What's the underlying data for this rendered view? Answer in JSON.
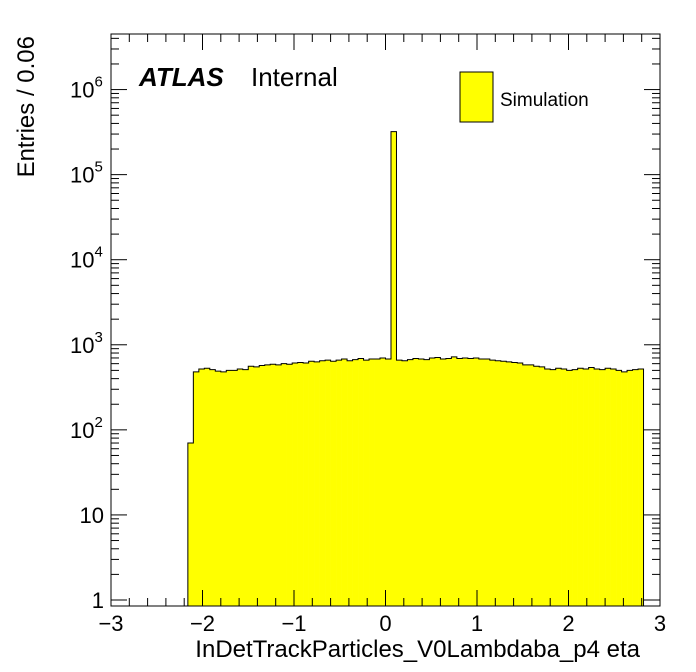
{
  "chart_data": {
    "type": "bar",
    "xlabel": "InDetTrackParticles_V0Lambdaba_p4 eta",
    "ylabel": "Entries / 0.06",
    "xlim": [
      -3,
      3
    ],
    "ylim": [
      0.85,
      4500000
    ],
    "log_y": true,
    "grid": false,
    "legend_position": "top-right",
    "atlas_label": "ATLAS",
    "atlas_sublabel": "Internal",
    "x_ticks": [
      {
        "value": -3,
        "label": "−3"
      },
      {
        "value": -2,
        "label": "−2"
      },
      {
        "value": -1,
        "label": "−1"
      },
      {
        "value": 0,
        "label": "0"
      },
      {
        "value": 1,
        "label": "1"
      },
      {
        "value": 2,
        "label": "2"
      },
      {
        "value": 3,
        "label": "3"
      }
    ],
    "y_ticks": [
      {
        "value": 1,
        "base": "1",
        "exp": ""
      },
      {
        "value": 10,
        "base": "10",
        "exp": ""
      },
      {
        "value": 100,
        "base": "10",
        "exp": "2"
      },
      {
        "value": 1000,
        "base": "10",
        "exp": "3"
      },
      {
        "value": 10000,
        "base": "10",
        "exp": "4"
      },
      {
        "value": 100000,
        "base": "10",
        "exp": "5"
      },
      {
        "value": 1000000,
        "base": "10",
        "exp": "6"
      }
    ],
    "series": [
      {
        "name": "Simulation",
        "color": "#ffff00",
        "edge_color": "#000000",
        "bin_width": 0.06,
        "x_start": -2.16,
        "values": [
          70,
          480,
          520,
          530,
          510,
          490,
          480,
          500,
          500,
          520,
          510,
          560,
          550,
          570,
          580,
          590,
          580,
          600,
          590,
          610,
          620,
          610,
          640,
          630,
          650,
          660,
          640,
          660,
          680,
          650,
          670,
          690,
          660,
          680,
          680,
          700,
          680,
          320000,
          660,
          650,
          670,
          690,
          680,
          670,
          700,
          710,
          680,
          690,
          720,
          690,
          700,
          690,
          700,
          680,
          680,
          660,
          650,
          640,
          630,
          620,
          610,
          580,
          580,
          560,
          550,
          520,
          510,
          530,
          520,
          500,
          510,
          530,
          520,
          540,
          520,
          510,
          530,
          520,
          500,
          480,
          500,
          510,
          520
        ]
      }
    ]
  }
}
